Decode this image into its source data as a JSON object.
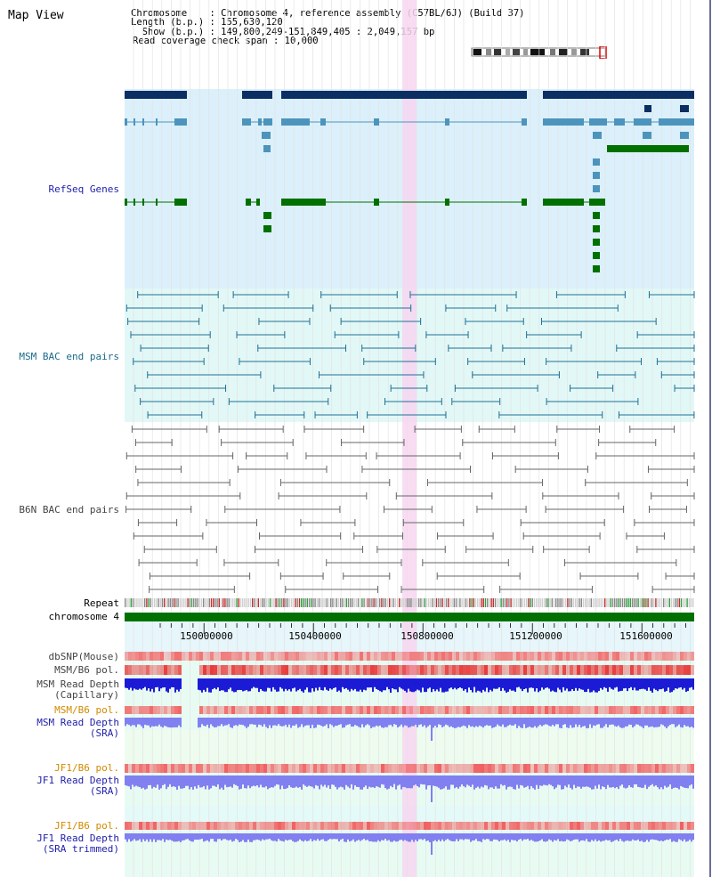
{
  "page": {
    "title": "Map View"
  },
  "info": {
    "chromosome_line": "Chromosome    : Chromosome 4, reference assembly (C57BL/6J) (Build 37)",
    "length_line": "Length (b.p.) : 155,630,120",
    "show_line": "  Show (b.p.) : 149,800,249-151,849,405 : 2,049,157 bp",
    "coverage_line": "Read coverage check span : 10,000"
  },
  "tracks": {
    "refseq": {
      "label": "RefSeq Genes",
      "color": "#dbf0fa"
    },
    "msm_bac": {
      "label": "MSM BAC end pairs",
      "color": "#e2f8f6"
    },
    "b6n_bac": {
      "label": "B6N BAC end pairs",
      "color": "#ffffff"
    },
    "repeat": {
      "label": "Repeat"
    },
    "chromosome": {
      "label": "chromosome 4",
      "color": "#007000"
    },
    "dbsnp": {
      "label": "dbSNP(Mouse)"
    },
    "msm_pol_1": {
      "label": "MSM/B6 pol."
    },
    "msm_depth_cap": {
      "label_1": "MSM Read Depth",
      "label_2": "(Capillary)"
    },
    "msm_pol_2": {
      "label": "MSM/B6 pol."
    },
    "msm_depth_sra": {
      "label_1": "MSM Read Depth",
      "label_2": "(SRA)"
    },
    "jf1_pol_1": {
      "label": "JF1/B6 pol."
    },
    "jf1_depth_sra": {
      "label_1": "JF1 Read Depth",
      "label_2": "(SRA)"
    },
    "jf1_pol_2": {
      "label": "JF1/B6 pol."
    },
    "jf1_depth_trim": {
      "label_1": "JF1 Read Depth",
      "label_2": "(SRA trimmed)"
    }
  },
  "ruler": {
    "ticks": [
      "150000000",
      "150400000",
      "150800000",
      "151200000",
      "151600000"
    ]
  },
  "colors": {
    "highlight": "#f6d6f0",
    "gene_dark": "#0b2f63",
    "gene_mid": "#4c94bc",
    "gene_green": "#007000",
    "depth_blue": "#1b1bd6",
    "depth_light": "#8080f0",
    "pol_red": "#e83a3a"
  }
}
